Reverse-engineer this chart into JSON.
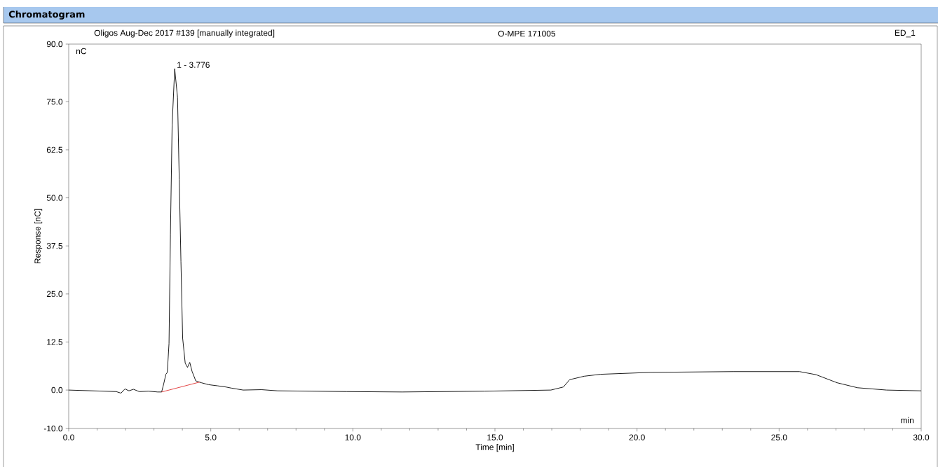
{
  "chart_data": {
    "type": "line",
    "title": "Chromatogram",
    "subtitle": "Oligos Aug-Dec 2017 #139 [manually integrated]",
    "xlabel": "Time [min]",
    "ylabel": "Response [nC]",
    "annotations": [
      "O-MPE 171005",
      "ED_1",
      "nC",
      "min",
      {
        "text": "1 - 3.776",
        "x": 3.776,
        "y": 83.6
      }
    ],
    "xlim": [
      0,
      30
    ],
    "ylim": [
      -10,
      90
    ],
    "xticks": [
      {
        "value": 0,
        "label": "0.0"
      },
      {
        "value": 5,
        "label": "5.0"
      },
      {
        "value": 10,
        "label": "10.0"
      },
      {
        "value": 15,
        "label": "15.0"
      },
      {
        "value": 20,
        "label": "20.0"
      },
      {
        "value": 25,
        "label": "25.0"
      },
      {
        "value": 30,
        "label": "30.0"
      }
    ],
    "yticks": [
      {
        "value": -10,
        "label": "-10.0"
      },
      {
        "value": 0,
        "label": "0.0"
      },
      {
        "value": 12.5,
        "label": "12.5"
      },
      {
        "value": 25,
        "label": "25.0"
      },
      {
        "value": 37.5,
        "label": "37.5"
      },
      {
        "value": 50,
        "label": "50.0"
      },
      {
        "value": 62.5,
        "label": "62.5"
      },
      {
        "value": 75,
        "label": "75.0"
      },
      {
        "value": 90,
        "label": "90.0"
      }
    ],
    "series": [
      {
        "color": "#000000",
        "x": [
          0,
          1.67,
          1.84,
          1.98,
          2.12,
          2.28,
          2.48,
          2.81,
          3.13,
          3.27,
          3.34,
          3.42,
          3.47,
          3.53,
          3.58,
          3.64,
          3.73,
          3.83,
          3.89,
          3.95,
          4.01,
          4.1,
          4.18,
          4.26,
          4.34,
          4.47,
          4.59,
          4.67,
          4.92,
          5.24,
          5.53,
          5.73,
          6.14,
          6.79,
          7.35,
          9.79,
          11.73,
          14.64,
          16.97,
          17.41,
          17.63,
          18.14,
          18.72,
          20.48,
          23.39,
          25.72,
          26.3,
          27.04,
          27.76,
          28.78,
          30
        ],
        "values": [
          0,
          -0.4,
          -0.8,
          0.3,
          -0.2,
          0.2,
          -0.4,
          -0.3,
          -0.5,
          -0.5,
          1.5,
          4.1,
          4.6,
          12.1,
          40.6,
          69,
          83.6,
          76.1,
          54.8,
          33.4,
          13.5,
          7.0,
          5.9,
          7.2,
          4.9,
          2.4,
          2.1,
          1.9,
          1.4,
          1.1,
          0.8,
          0.5,
          0,
          0.1,
          -0.2,
          -0.4,
          -0.5,
          -0.3,
          0,
          0.8,
          2.7,
          3.6,
          4.1,
          4.6,
          4.8,
          4.8,
          4.0,
          1.9,
          0.6,
          0,
          -0.2
        ]
      },
      {
        "color": "#e03030",
        "type": "line",
        "x": [
          3.27,
          4.62
        ],
        "values": [
          -0.5,
          2.1
        ]
      }
    ]
  }
}
